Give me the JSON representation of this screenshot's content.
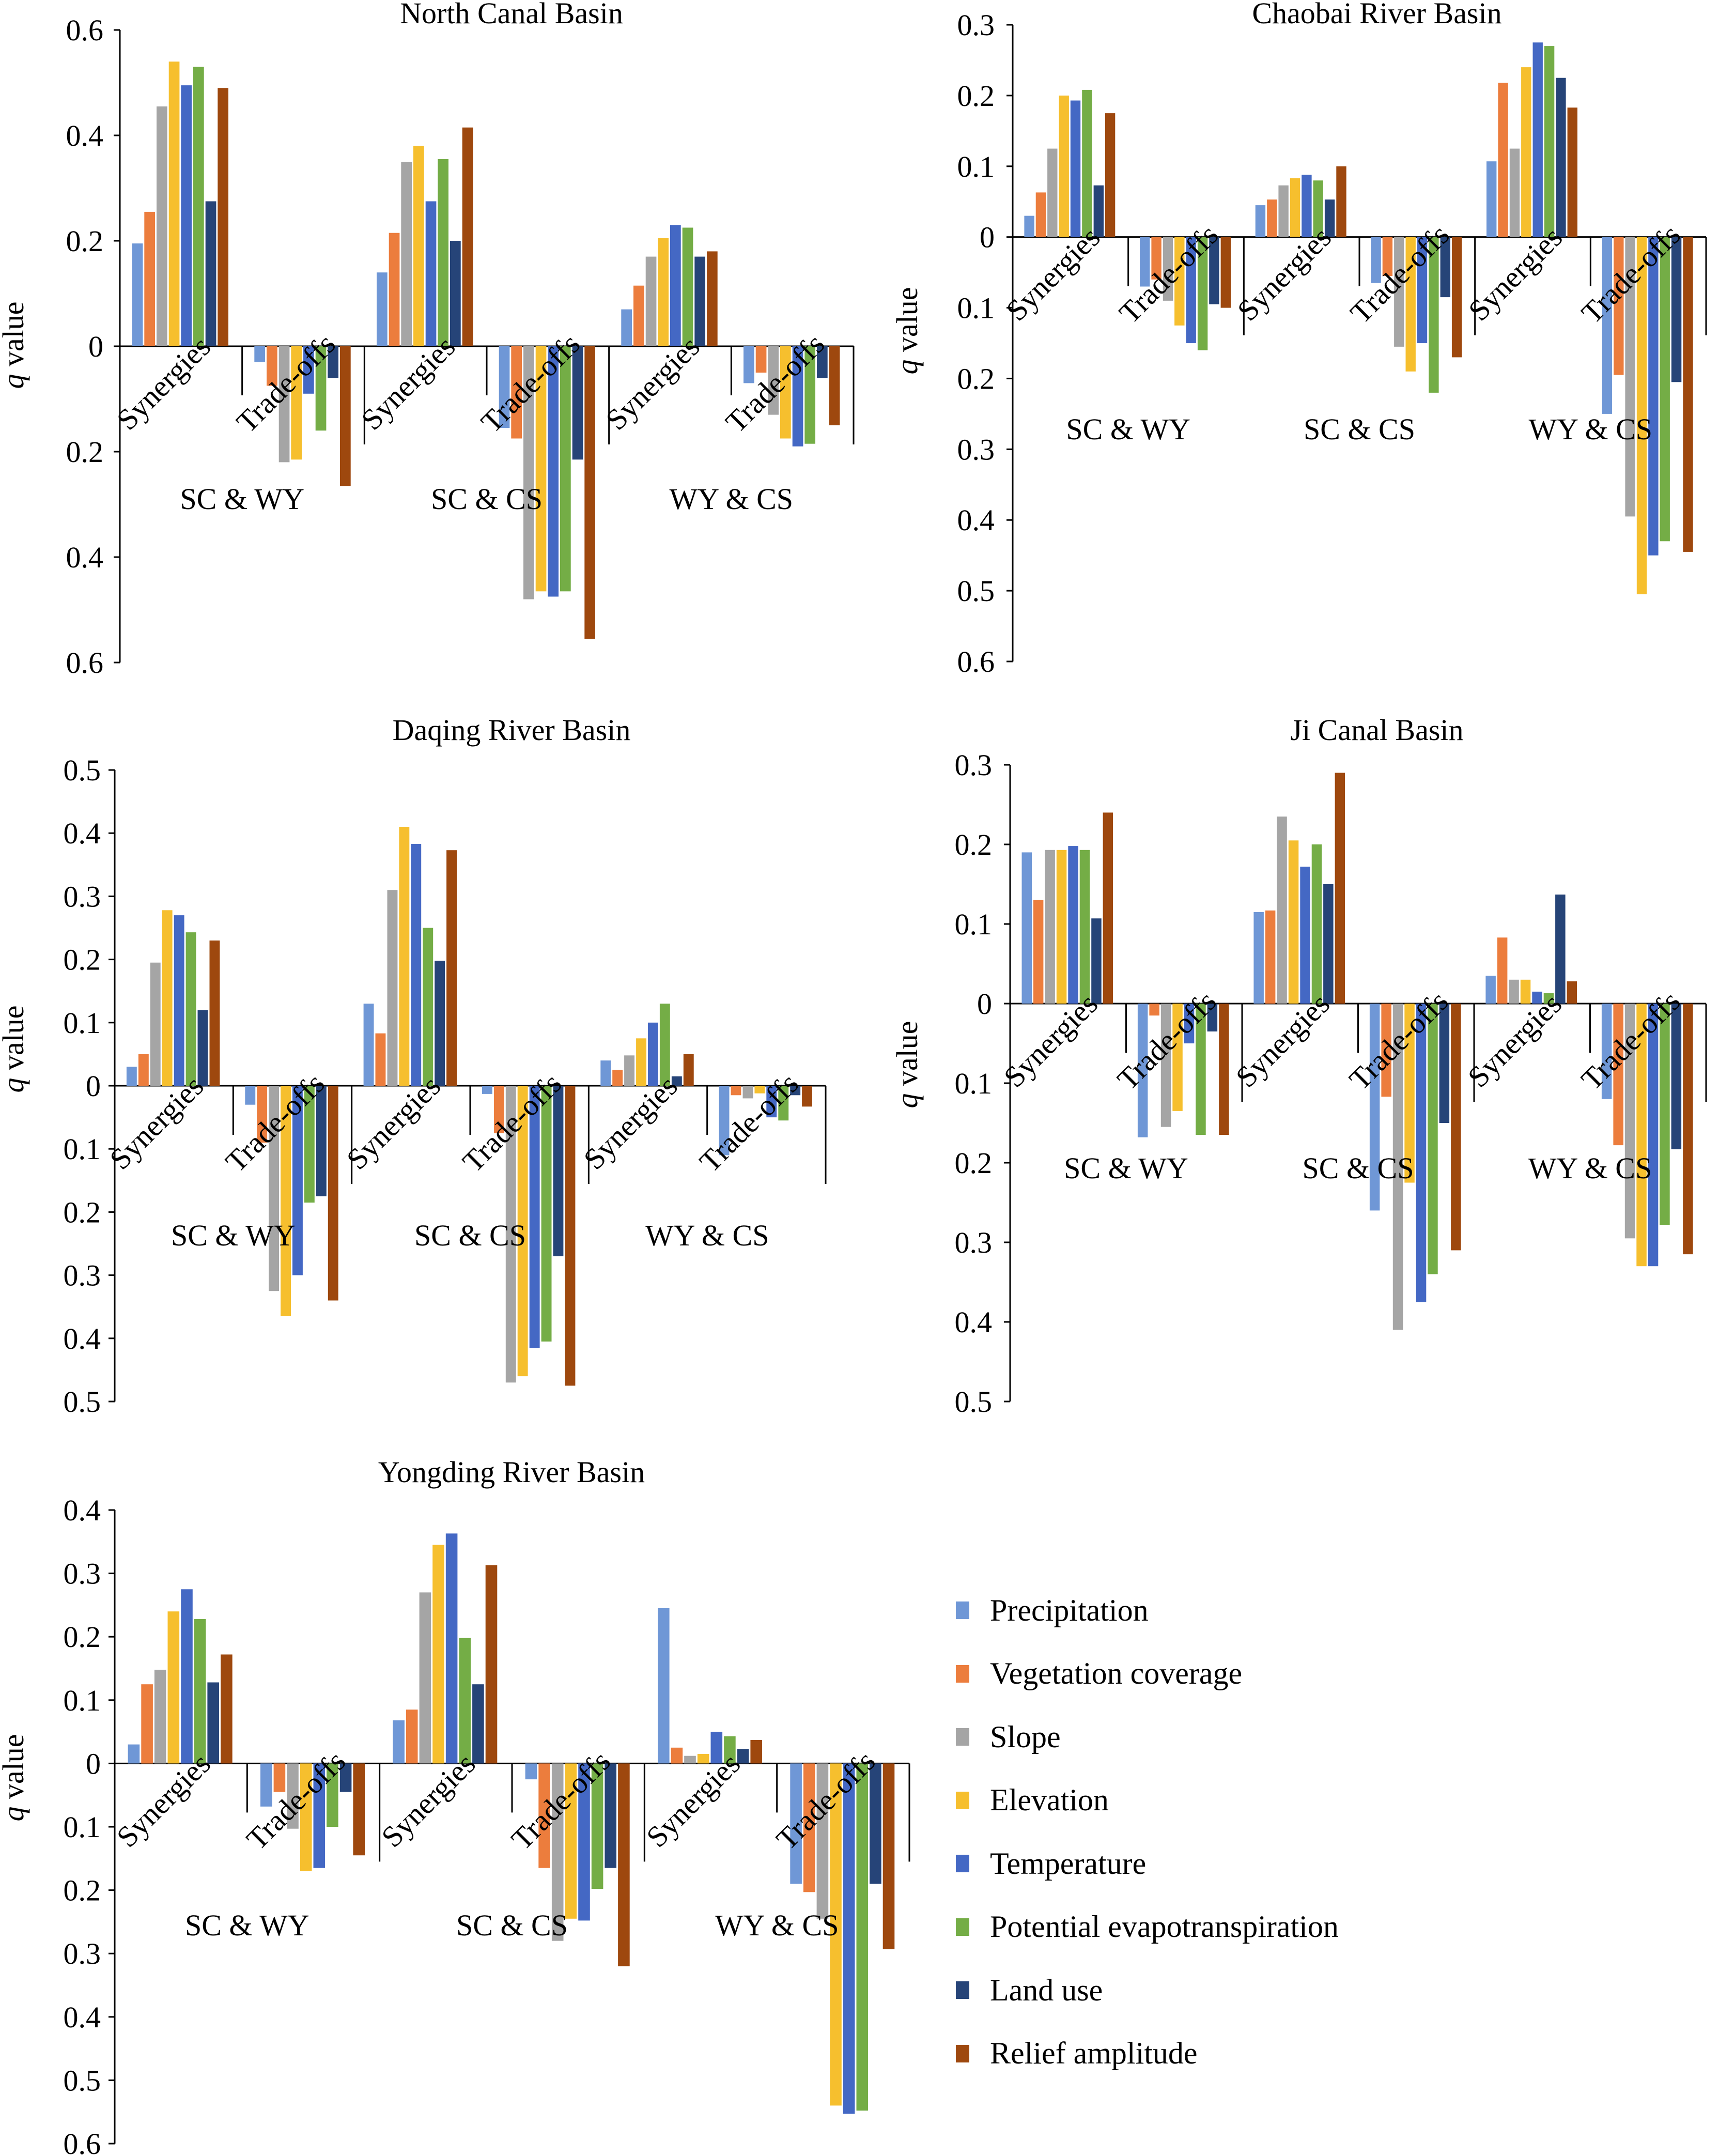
{
  "figure": {
    "y_axis_label_q": "q",
    "y_axis_label_rest": " value"
  },
  "legend": [
    {
      "name": "Precipitation",
      "color": "#6f97d6"
    },
    {
      "name": "Vegetation coverage",
      "color": "#ec7d3d"
    },
    {
      "name": "Slope",
      "color": "#a5a5a5"
    },
    {
      "name": "Elevation",
      "color": "#f6bf2e"
    },
    {
      "name": "Temperature",
      "color": "#4468c4"
    },
    {
      "name": "Potential evapotranspiration",
      "color": "#74ad46"
    },
    {
      "name": "Land use",
      "color": "#264478"
    },
    {
      "name": "Relief amplitude",
      "color": "#9e480e"
    }
  ],
  "chart_data": [
    {
      "type": "bar",
      "title": "North Canal Basin",
      "ylabel": "q value",
      "ylim": [
        -0.6,
        0.6
      ],
      "ticks": [
        "0.6",
        "0.4",
        "0.2",
        "0",
        "0.2",
        "0.4",
        "0.6"
      ],
      "groups": [
        "SC & WY",
        "SC & CS",
        "WY & CS"
      ],
      "subcategories": [
        "Synergies",
        "Trade-offs"
      ],
      "series_names": [
        "Precipitation",
        "Vegetation coverage",
        "Slope",
        "Elevation",
        "Temperature",
        "Potential evapotranspiration",
        "Land use",
        "Relief amplitude"
      ],
      "values": [
        [
          0.195,
          0.255,
          0.455,
          0.54,
          0.495,
          0.53,
          0.275,
          0.49
        ],
        [
          -0.03,
          -0.075,
          -0.22,
          -0.215,
          -0.09,
          -0.16,
          -0.06,
          -0.265
        ],
        [
          0.14,
          0.215,
          0.35,
          0.38,
          0.275,
          0.355,
          0.2,
          0.415
        ],
        [
          -0.155,
          -0.175,
          -0.48,
          -0.465,
          -0.475,
          -0.465,
          -0.215,
          -0.555
        ],
        [
          0.07,
          0.115,
          0.17,
          0.205,
          0.23,
          0.225,
          0.17,
          0.18
        ],
        [
          -0.07,
          -0.05,
          -0.13,
          -0.175,
          -0.19,
          -0.185,
          -0.06,
          -0.15
        ]
      ]
    },
    {
      "type": "bar",
      "title": "Chaobai River Basin",
      "ylabel": "q value",
      "ylim": [
        -0.6,
        0.3
      ],
      "ticks": [
        "0.3",
        "0.2",
        "0.1",
        "0",
        "0.1",
        "0.2",
        "0.3",
        "0.4",
        "0.5",
        "0.6"
      ],
      "groups": [
        "SC & WY",
        "SC & CS",
        "WY & CS"
      ],
      "subcategories": [
        "Synergies",
        "Trade-offs"
      ],
      "series_names": [
        "Precipitation",
        "Vegetation coverage",
        "Slope",
        "Elevation",
        "Temperature",
        "Potential evapotranspiration",
        "Land use",
        "Relief amplitude"
      ],
      "values": [
        [
          0.03,
          0.063,
          0.125,
          0.2,
          0.193,
          0.208,
          0.073,
          0.175
        ],
        [
          -0.07,
          -0.06,
          -0.09,
          -0.125,
          -0.15,
          -0.16,
          -0.095,
          -0.1
        ],
        [
          0.045,
          0.053,
          0.073,
          0.083,
          0.088,
          0.08,
          0.053,
          0.1
        ],
        [
          -0.065,
          -0.055,
          -0.155,
          -0.19,
          -0.15,
          -0.22,
          -0.085,
          -0.17
        ],
        [
          0.107,
          0.218,
          0.125,
          0.24,
          0.275,
          0.27,
          0.225,
          0.183
        ],
        [
          -0.25,
          -0.195,
          -0.395,
          -0.505,
          -0.45,
          -0.43,
          -0.205,
          -0.445
        ]
      ]
    },
    {
      "type": "bar",
      "title": "Daqing River Basin",
      "ylabel": "q value",
      "ylim": [
        -0.5,
        0.5
      ],
      "ticks": [
        "0.5",
        "0.4",
        "0.3",
        "0.2",
        "0.1",
        "0",
        "0.1",
        "0.2",
        "0.3",
        "0.4",
        "0.5"
      ],
      "groups": [
        "SC & WY",
        "SC & CS",
        "WY & CS"
      ],
      "subcategories": [
        "Synergies",
        "Trade-offs"
      ],
      "series_names": [
        "Precipitation",
        "Vegetation coverage",
        "Slope",
        "Elevation",
        "Temperature",
        "Potential evapotranspiration",
        "Land use",
        "Relief amplitude"
      ],
      "values": [
        [
          0.03,
          0.05,
          0.195,
          0.278,
          0.27,
          0.243,
          0.12,
          0.23
        ],
        [
          -0.03,
          -0.09,
          -0.325,
          -0.365,
          -0.3,
          -0.185,
          -0.175,
          -0.34
        ],
        [
          0.13,
          0.083,
          0.31,
          0.41,
          0.383,
          0.25,
          0.198,
          0.373
        ],
        [
          -0.013,
          -0.075,
          -0.47,
          -0.46,
          -0.415,
          -0.405,
          -0.27,
          -0.475
        ],
        [
          0.04,
          0.025,
          0.048,
          0.075,
          0.1,
          0.13,
          0.015,
          0.05
        ],
        [
          -0.11,
          -0.015,
          -0.02,
          -0.012,
          -0.05,
          -0.055,
          -0.015,
          -0.033
        ]
      ]
    },
    {
      "type": "bar",
      "title": "Ji Canal Basin",
      "ylabel": "q value",
      "ylim": [
        -0.5,
        0.3
      ],
      "ticks": [
        "0.3",
        "0.2",
        "0.1",
        "0",
        "0.1",
        "0.2",
        "0.3",
        "0.4",
        "0.5"
      ],
      "groups": [
        "SC & WY",
        "SC & CS",
        "WY & CS"
      ],
      "subcategories": [
        "Synergies",
        "Trade-offs"
      ],
      "series_names": [
        "Precipitation",
        "Vegetation coverage",
        "Slope",
        "Elevation",
        "Temperature",
        "Potential evapotranspiration",
        "Land use",
        "Relief amplitude"
      ],
      "values": [
        [
          0.19,
          0.13,
          0.193,
          0.193,
          0.198,
          0.193,
          0.107,
          0.24
        ],
        [
          -0.168,
          -0.015,
          -0.155,
          -0.135,
          -0.05,
          -0.165,
          -0.035,
          -0.165
        ],
        [
          0.115,
          0.117,
          0.235,
          0.205,
          0.172,
          0.2,
          0.15,
          0.29
        ],
        [
          -0.26,
          -0.117,
          -0.41,
          -0.225,
          -0.375,
          -0.34,
          -0.15,
          -0.31
        ],
        [
          0.035,
          0.083,
          0.03,
          0.03,
          0.015,
          0.013,
          0.137,
          0.028
        ],
        [
          -0.12,
          -0.178,
          -0.295,
          -0.33,
          -0.33,
          -0.278,
          -0.183,
          -0.315
        ]
      ]
    },
    {
      "type": "bar",
      "title": "Yongding River Basin",
      "ylabel": "q value",
      "ylim": [
        -0.6,
        0.4
      ],
      "ticks": [
        "0.4",
        "0.3",
        "0.2",
        "0.1",
        "0",
        "0.1",
        "0.2",
        "0.3",
        "0.4",
        "0.5",
        "0.6"
      ],
      "groups": [
        "SC & WY",
        "SC & CS",
        "WY & CS"
      ],
      "subcategories": [
        "Synergies",
        "Trade-offs"
      ],
      "series_names": [
        "Precipitation",
        "Vegetation coverage",
        "Slope",
        "Elevation",
        "Temperature",
        "Potential evapotranspiration",
        "Land use",
        "Relief amplitude"
      ],
      "values": [
        [
          0.03,
          0.125,
          0.148,
          0.24,
          0.275,
          0.228,
          0.128,
          0.172
        ],
        [
          -0.068,
          -0.045,
          -0.103,
          -0.17,
          -0.165,
          -0.1,
          -0.045,
          -0.145
        ],
        [
          0.068,
          0.085,
          0.27,
          0.345,
          0.363,
          0.198,
          0.125,
          0.313
        ],
        [
          -0.025,
          -0.165,
          -0.28,
          -0.245,
          -0.248,
          -0.198,
          -0.165,
          -0.32
        ],
        [
          0.245,
          0.025,
          0.012,
          0.015,
          0.05,
          0.043,
          0.023,
          0.037
        ],
        [
          -0.19,
          -0.203,
          -0.245,
          -0.54,
          -0.553,
          -0.548,
          -0.19,
          -0.293
        ]
      ]
    }
  ]
}
